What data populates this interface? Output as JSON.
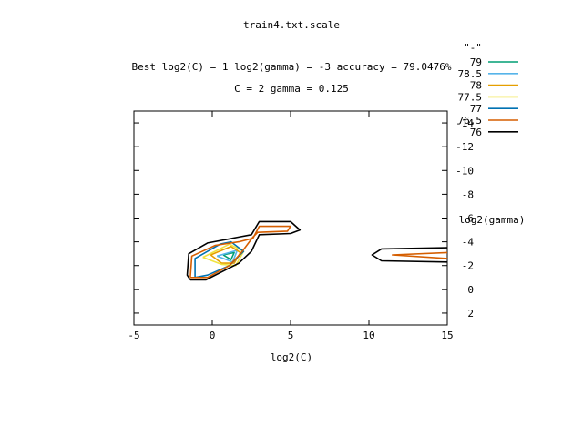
{
  "chart_data": {
    "type": "contour",
    "title": "train4.txt.scale",
    "subtitle_1": "Best log2(C) = 1  log2(gamma) = -3  accuracy = 79.0476%",
    "subtitle_2": "C = 2  gamma = 0.125",
    "xlabel": "log2(C)",
    "ylabel": "log2(gamma)",
    "xlim": [
      -5,
      15
    ],
    "ylim": [
      3,
      -15
    ],
    "x_ticks": [
      -5,
      0,
      5,
      10,
      15
    ],
    "y_ticks": [
      -14,
      -12,
      -10,
      -8,
      -6,
      -4,
      -2,
      0,
      2
    ],
    "x_tick_labels": [
      "-5",
      "0",
      "5",
      "10",
      "15"
    ],
    "y_tick_labels": [
      "-14",
      "-12",
      "-10",
      "-8",
      "-6",
      "-4",
      "-2",
      "0",
      "2"
    ],
    "legend_title": "\"-\"",
    "legend_position": "top-right",
    "grid": false,
    "levels": [
      {
        "name": "79",
        "color": "#009e73",
        "paths": [
          [
            [
              0.7,
              -2.9
            ],
            [
              1.4,
              -3.1
            ],
            [
              1.2,
              -2.5
            ],
            [
              0.7,
              -2.9
            ]
          ]
        ]
      },
      {
        "name": "78.5",
        "color": "#56b4e9",
        "paths": [
          [
            [
              0.3,
              -2.8
            ],
            [
              1.6,
              -3.3
            ],
            [
              1.3,
              -2.3
            ],
            [
              0.3,
              -2.8
            ]
          ]
        ]
      },
      {
        "name": "78",
        "color": "#e69f00",
        "paths": [
          [
            [
              -0.1,
              -2.9
            ],
            [
              1.2,
              -3.6
            ],
            [
              1.8,
              -3.1
            ],
            [
              1.4,
              -2.2
            ],
            [
              0.6,
              -2.2
            ],
            [
              -0.1,
              -2.9
            ]
          ]
        ]
      },
      {
        "name": "77.5",
        "color": "#f0e442",
        "paths": [
          [
            [
              -0.6,
              -2.7
            ],
            [
              1.1,
              -3.8
            ],
            [
              2.0,
              -3.2
            ],
            [
              1.5,
              -2.0
            ],
            [
              0.6,
              -2.1
            ],
            [
              -0.6,
              -2.7
            ]
          ]
        ]
      },
      {
        "name": "77",
        "color": "#0072b2",
        "paths": [
          [
            [
              -1.1,
              -1.0
            ],
            [
              -1.1,
              -2.6
            ],
            [
              0.5,
              -3.8
            ],
            [
              1.2,
              -4.0
            ],
            [
              2.0,
              -3.2
            ],
            [
              1.1,
              -2.0
            ],
            [
              -0.3,
              -1.2
            ],
            [
              -1.1,
              -1.0
            ]
          ]
        ]
      },
      {
        "name": "76.5",
        "color": "#d55e00",
        "paths": [
          [
            [
              -1.4,
              -1.0
            ],
            [
              -1.3,
              -2.8
            ],
            [
              0.2,
              -3.7
            ],
            [
              1.7,
              -4.0
            ],
            [
              2.6,
              -4.3
            ],
            [
              3.0,
              -5.3
            ],
            [
              5.0,
              -5.3
            ],
            [
              4.8,
              -4.9
            ],
            [
              2.9,
              -4.8
            ],
            [
              2.6,
              -4.4
            ],
            [
              1.8,
              -3.0
            ],
            [
              1.1,
              -2.0
            ],
            [
              -0.3,
              -1.0
            ],
            [
              -1.4,
              -1.0
            ]
          ],
          [
            [
              15,
              -2.6
            ],
            [
              11.5,
              -2.9
            ],
            [
              15,
              -3.1
            ]
          ]
        ]
      },
      {
        "name": "76",
        "color": "#000000",
        "paths": [
          [
            [
              -1.4,
              -0.8
            ],
            [
              -1.6,
              -1.2
            ],
            [
              -1.5,
              -3.0
            ],
            [
              -0.3,
              -3.9
            ],
            [
              1.7,
              -4.4
            ],
            [
              2.5,
              -4.6
            ],
            [
              3.0,
              -5.7
            ],
            [
              5.0,
              -5.7
            ],
            [
              5.6,
              -5.0
            ],
            [
              5.0,
              -4.7
            ],
            [
              3.0,
              -4.6
            ],
            [
              2.5,
              -3.2
            ],
            [
              1.7,
              -2.2
            ],
            [
              -0.4,
              -0.8
            ],
            [
              -1.4,
              -0.8
            ]
          ],
          [
            [
              15,
              -2.3
            ],
            [
              10.8,
              -2.4
            ],
            [
              10.2,
              -2.9
            ],
            [
              10.8,
              -3.4
            ],
            [
              15,
              -3.5
            ]
          ]
        ]
      }
    ]
  }
}
